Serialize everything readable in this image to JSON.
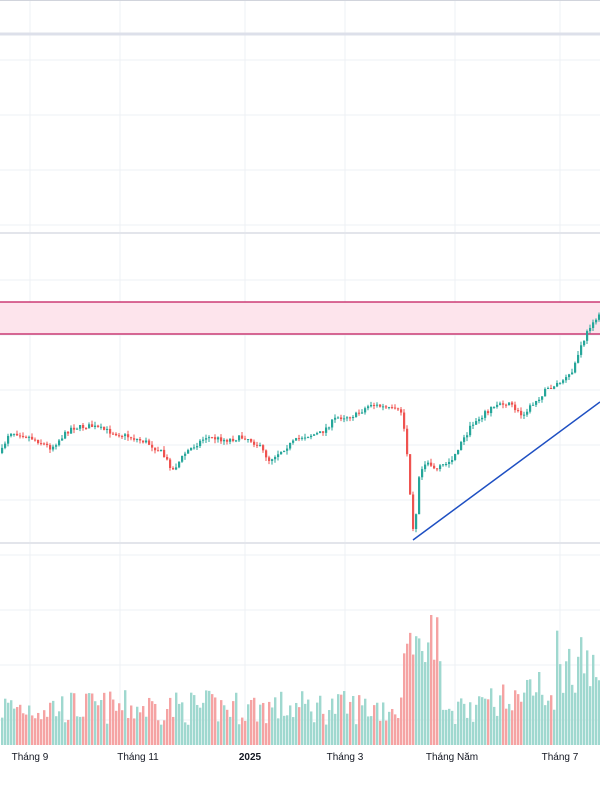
{
  "chart_data": {
    "type": "candlestick",
    "title": "",
    "xlabel": "",
    "ylabel": "",
    "x_tick_labels": [
      "Tháng 9",
      "Tháng 11",
      "2025",
      "Tháng 3",
      "Tháng Năm",
      "Tháng 7"
    ],
    "grid": true,
    "colors": {
      "up": "#26a69a",
      "down": "#ef5350",
      "volume_up": "#9fd8cf",
      "volume_down": "#f5a3a3",
      "zone_fill": "#fde4ec",
      "zone_border": "#c2185b",
      "trendline": "#1e4fc2",
      "grid": "#eef0f4",
      "separator": "#d1d4dc"
    },
    "price_path": [
      [
        0,
        453
      ],
      [
        8,
        432
      ],
      [
        20,
        434
      ],
      [
        35,
        440
      ],
      [
        50,
        448
      ],
      [
        70,
        428
      ],
      [
        90,
        426
      ],
      [
        110,
        432
      ],
      [
        125,
        436
      ],
      [
        145,
        442
      ],
      [
        160,
        452
      ],
      [
        172,
        470
      ],
      [
        185,
        452
      ],
      [
        205,
        437
      ],
      [
        225,
        440
      ],
      [
        245,
        437
      ],
      [
        258,
        446
      ],
      [
        268,
        460
      ],
      [
        285,
        447
      ],
      [
        300,
        437
      ],
      [
        320,
        433
      ],
      [
        335,
        418
      ],
      [
        355,
        415
      ],
      [
        370,
        404
      ],
      [
        385,
        408
      ],
      [
        400,
        412
      ],
      [
        405,
        440
      ],
      [
        410,
        505
      ],
      [
        413,
        538
      ],
      [
        418,
        475
      ],
      [
        425,
        460
      ],
      [
        435,
        470
      ],
      [
        450,
        460
      ],
      [
        462,
        440
      ],
      [
        472,
        423
      ],
      [
        485,
        412
      ],
      [
        500,
        402
      ],
      [
        510,
        405
      ],
      [
        520,
        415
      ],
      [
        530,
        406
      ],
      [
        545,
        390
      ],
      [
        560,
        382
      ],
      [
        570,
        375
      ],
      [
        578,
        352
      ],
      [
        585,
        335
      ],
      [
        592,
        320
      ],
      [
        600,
        316
      ]
    ],
    "zone": {
      "label": "",
      "upper_px_ref": "top",
      "lower_px_ref": "bottom"
    },
    "volume_note": "",
    "seed": 7
  }
}
